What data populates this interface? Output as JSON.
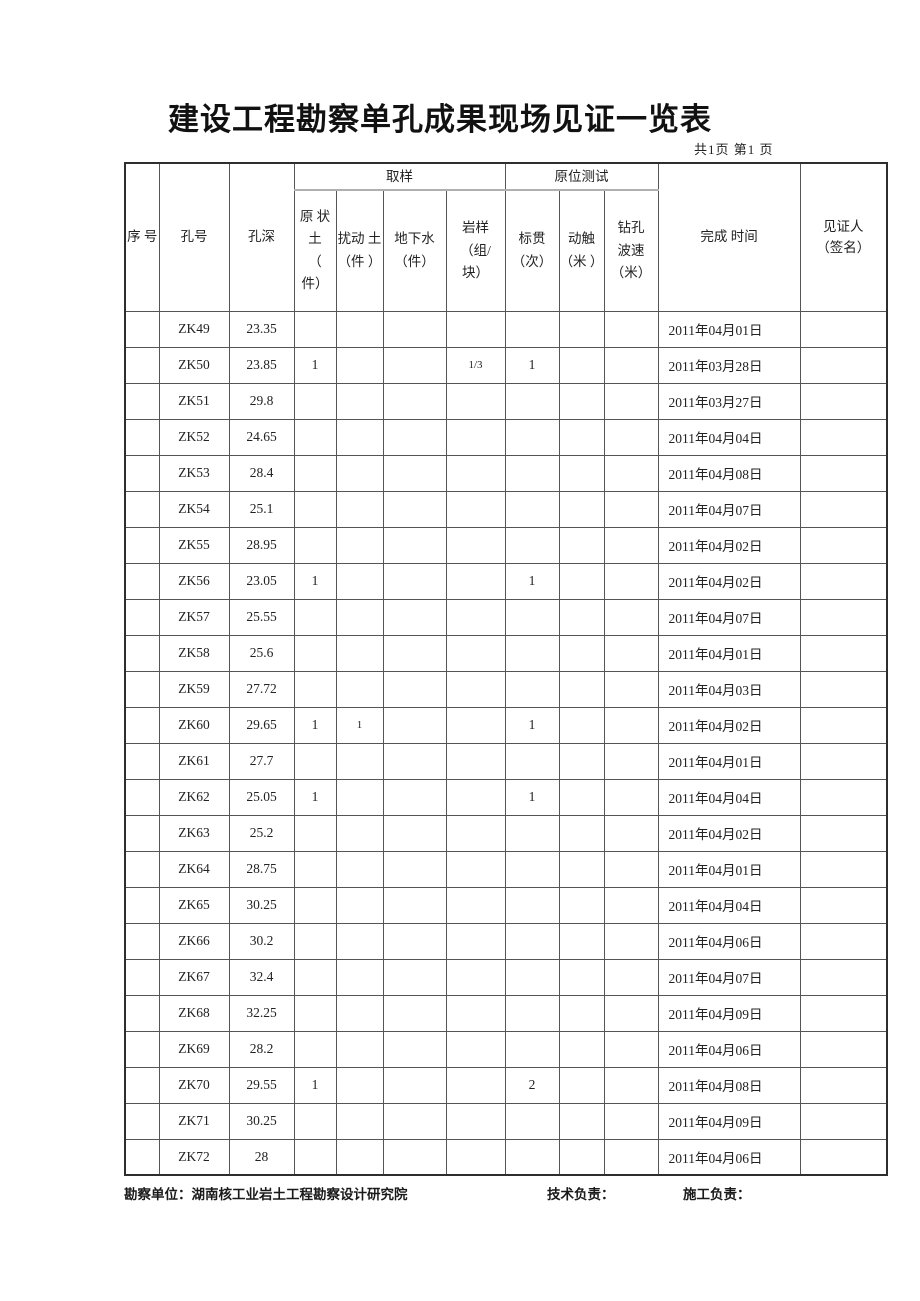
{
  "page": {
    "title": "建设工程勘察单孔成果现场见证一览表",
    "page_info": "共1页 第1 页"
  },
  "table": {
    "group_headers": {
      "sampling": "取样",
      "insitu": "原位测试"
    },
    "columns": [
      {
        "key": "seq",
        "label": "序 号"
      },
      {
        "key": "hole",
        "label": "孔号"
      },
      {
        "key": "depth",
        "label": "孔深"
      },
      {
        "key": "undisturbed",
        "label": "原 状\n土\n（\n件）"
      },
      {
        "key": "disturbed",
        "label": "扰动 土\n（件 ）"
      },
      {
        "key": "groundwater",
        "label": "地下水\n（件）"
      },
      {
        "key": "rock",
        "label": "岩样\n（组/\n块）"
      },
      {
        "key": "spt",
        "label": "标贯\n（次）"
      },
      {
        "key": "dpt",
        "label": "动触\n（米 ）"
      },
      {
        "key": "wave",
        "label": "钻孔\n波速\n（米）"
      },
      {
        "key": "finish",
        "label": "完成 时间"
      },
      {
        "key": "witness",
        "label": "见证人\n（签名）"
      }
    ],
    "rows": [
      {
        "seq": "",
        "hole": "ZK49",
        "depth": "23.35",
        "undisturbed": "",
        "disturbed": "",
        "groundwater": "",
        "rock": "",
        "spt": "",
        "dpt": "",
        "wave": "",
        "finish": "2011年04月01日",
        "witness": ""
      },
      {
        "seq": "",
        "hole": "ZK50",
        "depth": "23.85",
        "undisturbed": "1",
        "disturbed": "",
        "groundwater": "",
        "rock": "1/3",
        "spt": "1",
        "dpt": "",
        "wave": "",
        "finish": "2011年03月28日",
        "witness": ""
      },
      {
        "seq": "",
        "hole": "ZK51",
        "depth": "29.8",
        "undisturbed": "",
        "disturbed": "",
        "groundwater": "",
        "rock": "",
        "spt": "",
        "dpt": "",
        "wave": "",
        "finish": "2011年03月27日",
        "witness": ""
      },
      {
        "seq": "",
        "hole": "ZK52",
        "depth": "24.65",
        "undisturbed": "",
        "disturbed": "",
        "groundwater": "",
        "rock": "",
        "spt": "",
        "dpt": "",
        "wave": "",
        "finish": "2011年04月04日",
        "witness": ""
      },
      {
        "seq": "",
        "hole": "ZK53",
        "depth": "28.4",
        "undisturbed": "",
        "disturbed": "",
        "groundwater": "",
        "rock": "",
        "spt": "",
        "dpt": "",
        "wave": "",
        "finish": "2011年04月08日",
        "witness": ""
      },
      {
        "seq": "",
        "hole": "ZK54",
        "depth": "25.1",
        "undisturbed": "",
        "disturbed": "",
        "groundwater": "",
        "rock": "",
        "spt": "",
        "dpt": "",
        "wave": "",
        "finish": "2011年04月07日",
        "witness": ""
      },
      {
        "seq": "",
        "hole": "ZK55",
        "depth": "28.95",
        "undisturbed": "",
        "disturbed": "",
        "groundwater": "",
        "rock": "",
        "spt": "",
        "dpt": "",
        "wave": "",
        "finish": "2011年04月02日",
        "witness": ""
      },
      {
        "seq": "",
        "hole": "ZK56",
        "depth": "23.05",
        "undisturbed": "1",
        "disturbed": "",
        "groundwater": "",
        "rock": "",
        "spt": "1",
        "dpt": "",
        "wave": "",
        "finish": "2011年04月02日",
        "witness": ""
      },
      {
        "seq": "",
        "hole": "ZK57",
        "depth": "25.55",
        "undisturbed": "",
        "disturbed": "",
        "groundwater": "",
        "rock": "",
        "spt": "",
        "dpt": "",
        "wave": "",
        "finish": "2011年04月07日",
        "witness": ""
      },
      {
        "seq": "",
        "hole": "ZK58",
        "depth": "25.6",
        "undisturbed": "",
        "disturbed": "",
        "groundwater": "",
        "rock": "",
        "spt": "",
        "dpt": "",
        "wave": "",
        "finish": "2011年04月01日",
        "witness": ""
      },
      {
        "seq": "",
        "hole": "ZK59",
        "depth": "27.72",
        "undisturbed": "",
        "disturbed": "",
        "groundwater": "",
        "rock": "",
        "spt": "",
        "dpt": "",
        "wave": "",
        "finish": "2011年04月03日",
        "witness": ""
      },
      {
        "seq": "",
        "hole": "ZK60",
        "depth": "29.65",
        "undisturbed": "1",
        "disturbed": "1",
        "groundwater": "",
        "rock": "",
        "spt": "1",
        "dpt": "",
        "wave": "",
        "finish": "2011年04月02日",
        "witness": ""
      },
      {
        "seq": "",
        "hole": "ZK61",
        "depth": "27.7",
        "undisturbed": "",
        "disturbed": "",
        "groundwater": "",
        "rock": "",
        "spt": "",
        "dpt": "",
        "wave": "",
        "finish": "2011年04月01日",
        "witness": ""
      },
      {
        "seq": "",
        "hole": "ZK62",
        "depth": "25.05",
        "undisturbed": "1",
        "disturbed": "",
        "groundwater": "",
        "rock": "",
        "spt": "1",
        "dpt": "",
        "wave": "",
        "finish": "2011年04月04日",
        "witness": ""
      },
      {
        "seq": "",
        "hole": "ZK63",
        "depth": "25.2",
        "undisturbed": "",
        "disturbed": "",
        "groundwater": "",
        "rock": "",
        "spt": "",
        "dpt": "",
        "wave": "",
        "finish": "2011年04月02日",
        "witness": ""
      },
      {
        "seq": "",
        "hole": "ZK64",
        "depth": "28.75",
        "undisturbed": "",
        "disturbed": "",
        "groundwater": "",
        "rock": "",
        "spt": "",
        "dpt": "",
        "wave": "",
        "finish": "2011年04月01日",
        "witness": ""
      },
      {
        "seq": "",
        "hole": "ZK65",
        "depth": "30.25",
        "undisturbed": "",
        "disturbed": "",
        "groundwater": "",
        "rock": "",
        "spt": "",
        "dpt": "",
        "wave": "",
        "finish": "2011年04月04日",
        "witness": ""
      },
      {
        "seq": "",
        "hole": "ZK66",
        "depth": "30.2",
        "undisturbed": "",
        "disturbed": "",
        "groundwater": "",
        "rock": "",
        "spt": "",
        "dpt": "",
        "wave": "",
        "finish": "2011年04月06日",
        "witness": ""
      },
      {
        "seq": "",
        "hole": "ZK67",
        "depth": "32.4",
        "undisturbed": "",
        "disturbed": "",
        "groundwater": "",
        "rock": "",
        "spt": "",
        "dpt": "",
        "wave": "",
        "finish": "2011年04月07日",
        "witness": ""
      },
      {
        "seq": "",
        "hole": "ZK68",
        "depth": "32.25",
        "undisturbed": "",
        "disturbed": "",
        "groundwater": "",
        "rock": "",
        "spt": "",
        "dpt": "",
        "wave": "",
        "finish": "2011年04月09日",
        "witness": ""
      },
      {
        "seq": "",
        "hole": "ZK69",
        "depth": "28.2",
        "undisturbed": "",
        "disturbed": "",
        "groundwater": "",
        "rock": "",
        "spt": "",
        "dpt": "",
        "wave": "",
        "finish": "2011年04月06日",
        "witness": ""
      },
      {
        "seq": "",
        "hole": "ZK70",
        "depth": "29.55",
        "undisturbed": "1",
        "disturbed": "",
        "groundwater": "",
        "rock": "",
        "spt": "2",
        "dpt": "",
        "wave": "",
        "finish": "2011年04月08日",
        "witness": ""
      },
      {
        "seq": "",
        "hole": "ZK71",
        "depth": "30.25",
        "undisturbed": "",
        "disturbed": "",
        "groundwater": "",
        "rock": "",
        "spt": "",
        "dpt": "",
        "wave": "",
        "finish": "2011年04月09日",
        "witness": ""
      },
      {
        "seq": "",
        "hole": "ZK72",
        "depth": "28",
        "undisturbed": "",
        "disturbed": "",
        "groundwater": "",
        "rock": "",
        "spt": "",
        "dpt": "",
        "wave": "",
        "finish": "2011年04月06日",
        "witness": ""
      }
    ]
  },
  "footer": {
    "survey_unit": "勘察单位：湖南核工业岩土工程勘察设计研究院",
    "tech_lead": "技术负责：",
    "construction_lead": "施工负责："
  }
}
